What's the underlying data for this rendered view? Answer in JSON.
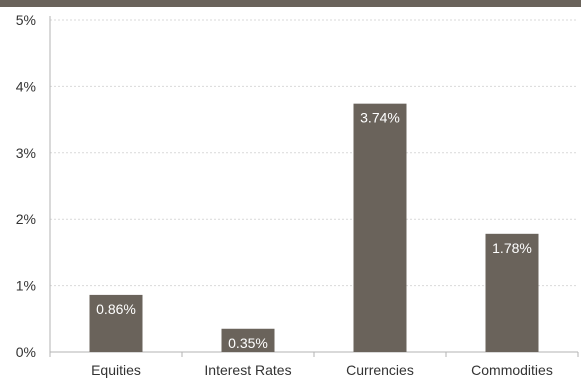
{
  "chart_data": {
    "type": "bar",
    "title": "",
    "xlabel": "",
    "ylabel": "",
    "categories": [
      "Equities",
      "Interest Rates",
      "Currencies",
      "Commodities"
    ],
    "values": [
      0.86,
      0.35,
      3.74,
      1.78
    ],
    "data_labels": [
      "0.86%",
      "0.35%",
      "3.74%",
      "1.78%"
    ],
    "ylim": [
      0,
      5
    ],
    "yticks": [
      0,
      1,
      2,
      3,
      4,
      5
    ],
    "ytick_labels": [
      "0%",
      "1%",
      "2%",
      "3%",
      "4%",
      "5%"
    ],
    "grid": "horizontal dashed",
    "legend": "none",
    "colors": {
      "bar": "#6a635b",
      "band": "#6a635b",
      "grid": "#d9d9d9",
      "axis": "#b3b3b3",
      "text": "#333333",
      "label_text": "#ffffff"
    }
  }
}
